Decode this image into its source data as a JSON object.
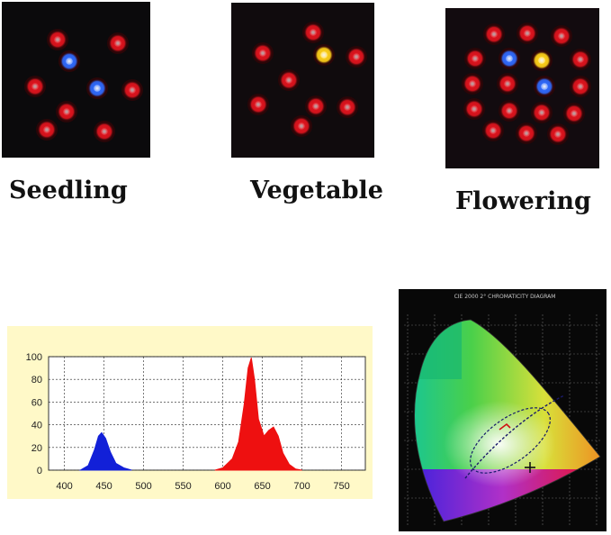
{
  "labels": {
    "seedling": "Seedling",
    "vegetable": "Vegetable",
    "flowering": "Flowering"
  },
  "colors": {
    "red_led": "#e0141e",
    "blue_led": "#2f6bff",
    "yellow_led": "#ffd21a",
    "spectrum_blue": "#1220d8",
    "spectrum_red": "#ee1010",
    "spectrum_panel": "#fff9c8"
  },
  "icons": {
    "led": "led-bulb-icon",
    "crosshair": "crosshair-icon"
  },
  "chart_data": [
    {
      "type": "area",
      "title": "",
      "xlabel": "",
      "ylabel": "",
      "xlim": [
        380,
        780
      ],
      "ylim": [
        0,
        100
      ],
      "x_ticks": [
        400,
        450,
        500,
        550,
        600,
        650,
        700,
        750
      ],
      "y_ticks": [
        0,
        20,
        40,
        60,
        80,
        100
      ],
      "grid": true,
      "series": [
        {
          "color": "#1220d8",
          "x": [
            420,
            430,
            438,
            443,
            447,
            452,
            458,
            465,
            475,
            485
          ],
          "values": [
            0,
            4,
            18,
            30,
            33,
            28,
            16,
            6,
            2,
            0
          ]
        },
        {
          "color": "#ee1010",
          "x": [
            590,
            600,
            612,
            620,
            627,
            632,
            636,
            640,
            645,
            652,
            658,
            664,
            670,
            676,
            684,
            692,
            700
          ],
          "values": [
            0,
            2,
            10,
            25,
            58,
            90,
            99,
            80,
            45,
            30,
            35,
            38,
            30,
            15,
            5,
            1,
            0
          ]
        }
      ]
    },
    {
      "type": "diagram",
      "title": "CIE 2000 2° CHROMATICITY DIAGRAM"
    }
  ]
}
